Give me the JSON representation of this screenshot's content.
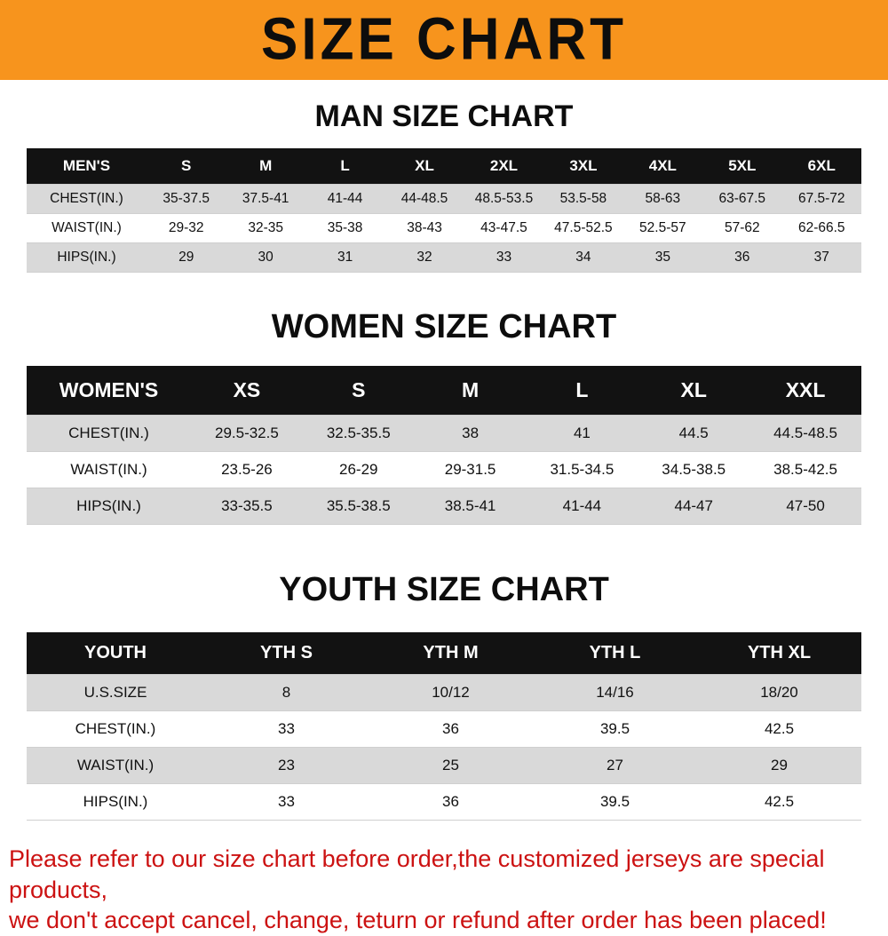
{
  "colors": {
    "banner_orange": "#F7941D",
    "table_header_black": "#121212",
    "stripe_gray": "#d9d9d9",
    "footer_red": "#cc1212"
  },
  "banner": {
    "title": "SIZE CHART"
  },
  "men": {
    "heading": "MAN SIZE CHART",
    "corner": "MEN'S",
    "columns": [
      "S",
      "M",
      "L",
      "XL",
      "2XL",
      "3XL",
      "4XL",
      "5XL",
      "6XL"
    ],
    "rows": [
      {
        "label": "CHEST(IN.)",
        "values": [
          "35-37.5",
          "37.5-41",
          "41-44",
          "44-48.5",
          "48.5-53.5",
          "53.5-58",
          "58-63",
          "63-67.5",
          "67.5-72"
        ]
      },
      {
        "label": "WAIST(IN.)",
        "values": [
          "29-32",
          "32-35",
          "35-38",
          "38-43",
          "43-47.5",
          "47.5-52.5",
          "52.5-57",
          "57-62",
          "62-66.5"
        ]
      },
      {
        "label": "HIPS(IN.)",
        "values": [
          "29",
          "30",
          "31",
          "32",
          "33",
          "34",
          "35",
          "36",
          "37"
        ]
      }
    ]
  },
  "women": {
    "heading": "WOMEN SIZE CHART",
    "corner": "WOMEN'S",
    "columns": [
      "XS",
      "S",
      "M",
      "L",
      "XL",
      "XXL"
    ],
    "rows": [
      {
        "label": "CHEST(IN.)",
        "values": [
          "29.5-32.5",
          "32.5-35.5",
          "38",
          "41",
          "44.5",
          "44.5-48.5"
        ]
      },
      {
        "label": "WAIST(IN.)",
        "values": [
          "23.5-26",
          "26-29",
          "29-31.5",
          "31.5-34.5",
          "34.5-38.5",
          "38.5-42.5"
        ]
      },
      {
        "label": "HIPS(IN.)",
        "values": [
          "33-35.5",
          "35.5-38.5",
          "38.5-41",
          "41-44",
          "44-47",
          "47-50"
        ]
      }
    ]
  },
  "youth": {
    "heading": "YOUTH SIZE CHART",
    "corner": "YOUTH",
    "columns": [
      "YTH S",
      "YTH M",
      "YTH L",
      "YTH XL"
    ],
    "rows": [
      {
        "label": "U.S.SIZE",
        "values": [
          "8",
          "10/12",
          "14/16",
          "18/20"
        ]
      },
      {
        "label": "CHEST(IN.)",
        "values": [
          "33",
          "36",
          "39.5",
          "42.5"
        ]
      },
      {
        "label": "WAIST(IN.)",
        "values": [
          "23",
          "25",
          "27",
          "29"
        ]
      },
      {
        "label": "HIPS(IN.)",
        "values": [
          "33",
          "36",
          "39.5",
          "42.5"
        ]
      }
    ]
  },
  "footer": {
    "line1": "Please refer to our size chart before order,the customized jerseys are special products,",
    "line2": "we don't accept cancel, change, teturn or refund after order has been placed!"
  }
}
